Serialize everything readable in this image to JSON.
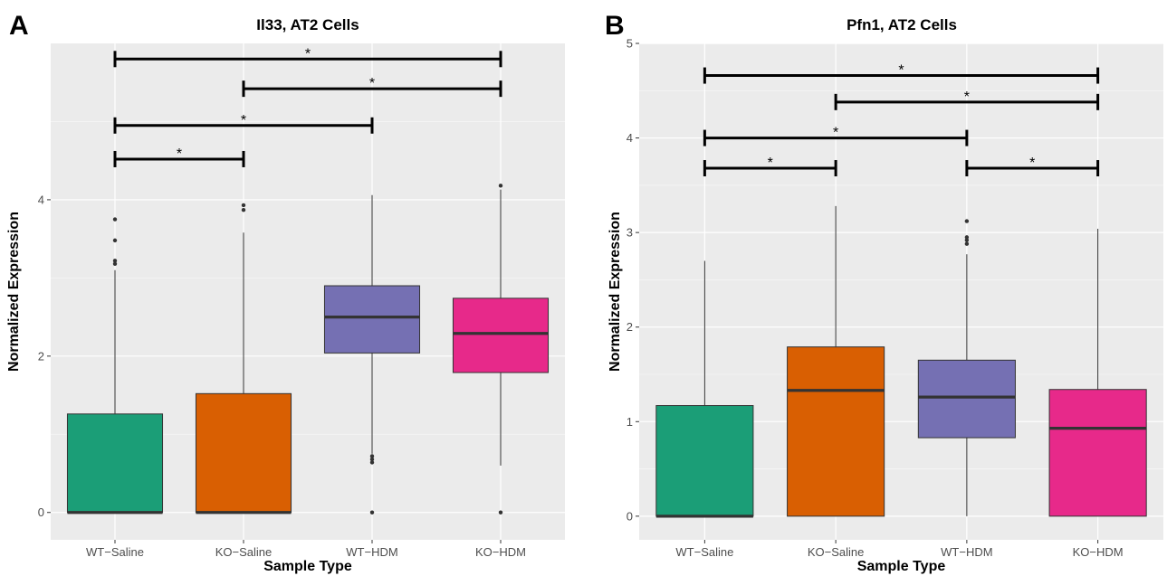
{
  "chart_data": [
    {
      "panel": "A",
      "type": "box",
      "title": "Il33, AT2 Cells",
      "xlabel": "Sample Type",
      "ylabel": "Normalized Expression",
      "categories": [
        "WT−Saline",
        "KO−Saline",
        "WT−HDM",
        "KO−HDM"
      ],
      "ylim": [
        -0.35,
        6.0
      ],
      "yticks": [
        0,
        2,
        4
      ],
      "grid": true,
      "legend": "none",
      "boxes": [
        {
          "name": "WT−Saline",
          "color": "#1b9e77",
          "min": 0,
          "q1": 0,
          "median": 0,
          "q3": 1.26,
          "max": 3.1,
          "outliers": [
            3.75,
            3.48,
            3.22,
            3.18
          ]
        },
        {
          "name": "KO−Saline",
          "color": "#d95f02",
          "min": 0,
          "q1": 0,
          "median": 0,
          "q3": 1.52,
          "max": 3.58,
          "outliers": [
            3.93,
            3.87
          ]
        },
        {
          "name": "WT−HDM",
          "color": "#7570b3",
          "min": 0.75,
          "q1": 2.04,
          "median": 2.5,
          "q3": 2.9,
          "max": 4.06,
          "outliers": [
            0.72,
            0.68,
            0.64,
            0.0
          ]
        },
        {
          "name": "KO−HDM",
          "color": "#e7298a",
          "min": 0.6,
          "q1": 1.79,
          "median": 2.29,
          "q3": 2.74,
          "max": 4.13,
          "outliers": [
            4.18,
            0.0
          ]
        }
      ],
      "significance": [
        {
          "from": 0,
          "to": 3,
          "y": 5.8,
          "label": "*"
        },
        {
          "from": 1,
          "to": 3,
          "y": 5.42,
          "label": "*"
        },
        {
          "from": 0,
          "to": 2,
          "y": 4.95,
          "label": "*"
        },
        {
          "from": 0,
          "to": 1,
          "y": 4.52,
          "label": "*"
        }
      ]
    },
    {
      "panel": "B",
      "type": "box",
      "title": "Pfn1, AT2 Cells",
      "xlabel": "Sample Type",
      "ylabel": "Normalized Expression",
      "categories": [
        "WT−Saline",
        "KO−Saline",
        "WT−HDM",
        "KO−HDM"
      ],
      "ylim": [
        -0.25,
        5.0
      ],
      "yticks": [
        0,
        1,
        2,
        3,
        4,
        5
      ],
      "grid": true,
      "legend": "none",
      "boxes": [
        {
          "name": "WT−Saline",
          "color": "#1b9e77",
          "min": 0,
          "q1": 0,
          "median": 0,
          "q3": 1.17,
          "max": 2.7,
          "outliers": []
        },
        {
          "name": "KO−Saline",
          "color": "#d95f02",
          "min": 0,
          "q1": 0,
          "median": 1.33,
          "q3": 1.79,
          "max": 3.28,
          "outliers": []
        },
        {
          "name": "WT−HDM",
          "color": "#7570b3",
          "min": 0,
          "q1": 0.83,
          "median": 1.26,
          "q3": 1.65,
          "max": 2.77,
          "outliers": [
            3.12,
            2.95,
            2.92,
            2.88
          ]
        },
        {
          "name": "KO−HDM",
          "color": "#e7298a",
          "min": 0,
          "q1": 0,
          "median": 0.93,
          "q3": 1.34,
          "max": 3.04,
          "outliers": []
        }
      ],
      "significance": [
        {
          "from": 0,
          "to": 3,
          "y": 4.66,
          "label": "*"
        },
        {
          "from": 1,
          "to": 3,
          "y": 4.38,
          "label": "*"
        },
        {
          "from": 0,
          "to": 2,
          "y": 4.0,
          "label": "*"
        },
        {
          "from": 0,
          "to": 1,
          "y": 3.68,
          "label": "*"
        },
        {
          "from": 2,
          "to": 3,
          "y": 3.68,
          "label": "*"
        }
      ]
    }
  ]
}
